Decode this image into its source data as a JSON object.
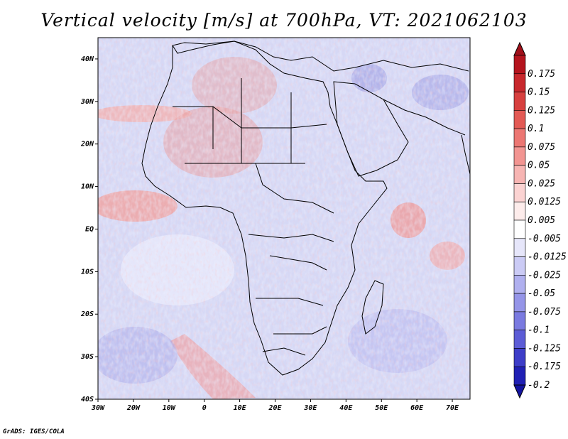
{
  "title": "Vertical velocity [m/s] at 700hPa, VT: 2021062103",
  "credit": "GrADS: IGES/COLA",
  "map": {
    "lon_range": [
      -30,
      75
    ],
    "lat_range": [
      -40,
      45
    ],
    "lat_ticks": [
      {
        "lat": 40,
        "label": "40N"
      },
      {
        "lat": 30,
        "label": "30N"
      },
      {
        "lat": 20,
        "label": "20N"
      },
      {
        "lat": 10,
        "label": "10N"
      },
      {
        "lat": 0,
        "label": "EQ"
      },
      {
        "lat": -10,
        "label": "10S"
      },
      {
        "lat": -20,
        "label": "20S"
      },
      {
        "lat": -30,
        "label": "30S"
      },
      {
        "lat": -40,
        "label": "40S"
      }
    ],
    "lon_ticks": [
      {
        "lon": -30,
        "label": "30W"
      },
      {
        "lon": -20,
        "label": "20W"
      },
      {
        "lon": -10,
        "label": "10W"
      },
      {
        "lon": 0,
        "label": "0"
      },
      {
        "lon": 10,
        "label": "10E"
      },
      {
        "lon": 20,
        "label": "20E"
      },
      {
        "lon": 30,
        "label": "30E"
      },
      {
        "lon": 40,
        "label": "40E"
      },
      {
        "lon": 50,
        "label": "50E"
      },
      {
        "lon": 60,
        "label": "60E"
      },
      {
        "lon": 70,
        "label": "70E"
      }
    ]
  },
  "colorbar": {
    "levels": [
      {
        "label": "0.175",
        "color": "#b4141e"
      },
      {
        "label": "0.15",
        "color": "#c8282d"
      },
      {
        "label": "0.125",
        "color": "#d7403f"
      },
      {
        "label": "0.1",
        "color": "#e35a55"
      },
      {
        "label": "0.075",
        "color": "#ec7773"
      },
      {
        "label": "0.05",
        "color": "#f29592"
      },
      {
        "label": "0.025",
        "color": "#f7b5b3"
      },
      {
        "label": "0.0125",
        "color": "#fbd3d2"
      },
      {
        "label": "0.005",
        "color": "#fdeceb"
      },
      {
        "label": "-0.005",
        "color": "#ffffff"
      },
      {
        "label": "-0.0125",
        "color": "#e6e6fa"
      },
      {
        "label": "-0.025",
        "color": "#cbcbf5"
      },
      {
        "label": "-0.05",
        "color": "#b0b0ef"
      },
      {
        "label": "-0.075",
        "color": "#9595e8"
      },
      {
        "label": "-0.1",
        "color": "#7a7ae0"
      },
      {
        "label": "-0.125",
        "color": "#5c5cd6"
      },
      {
        "label": "-0.175",
        "color": "#3d3dc8"
      },
      {
        "label": "-0.2",
        "color": "#2020b4"
      }
    ],
    "top_color": "#a0101a",
    "bottom_color": "#1414a0"
  }
}
